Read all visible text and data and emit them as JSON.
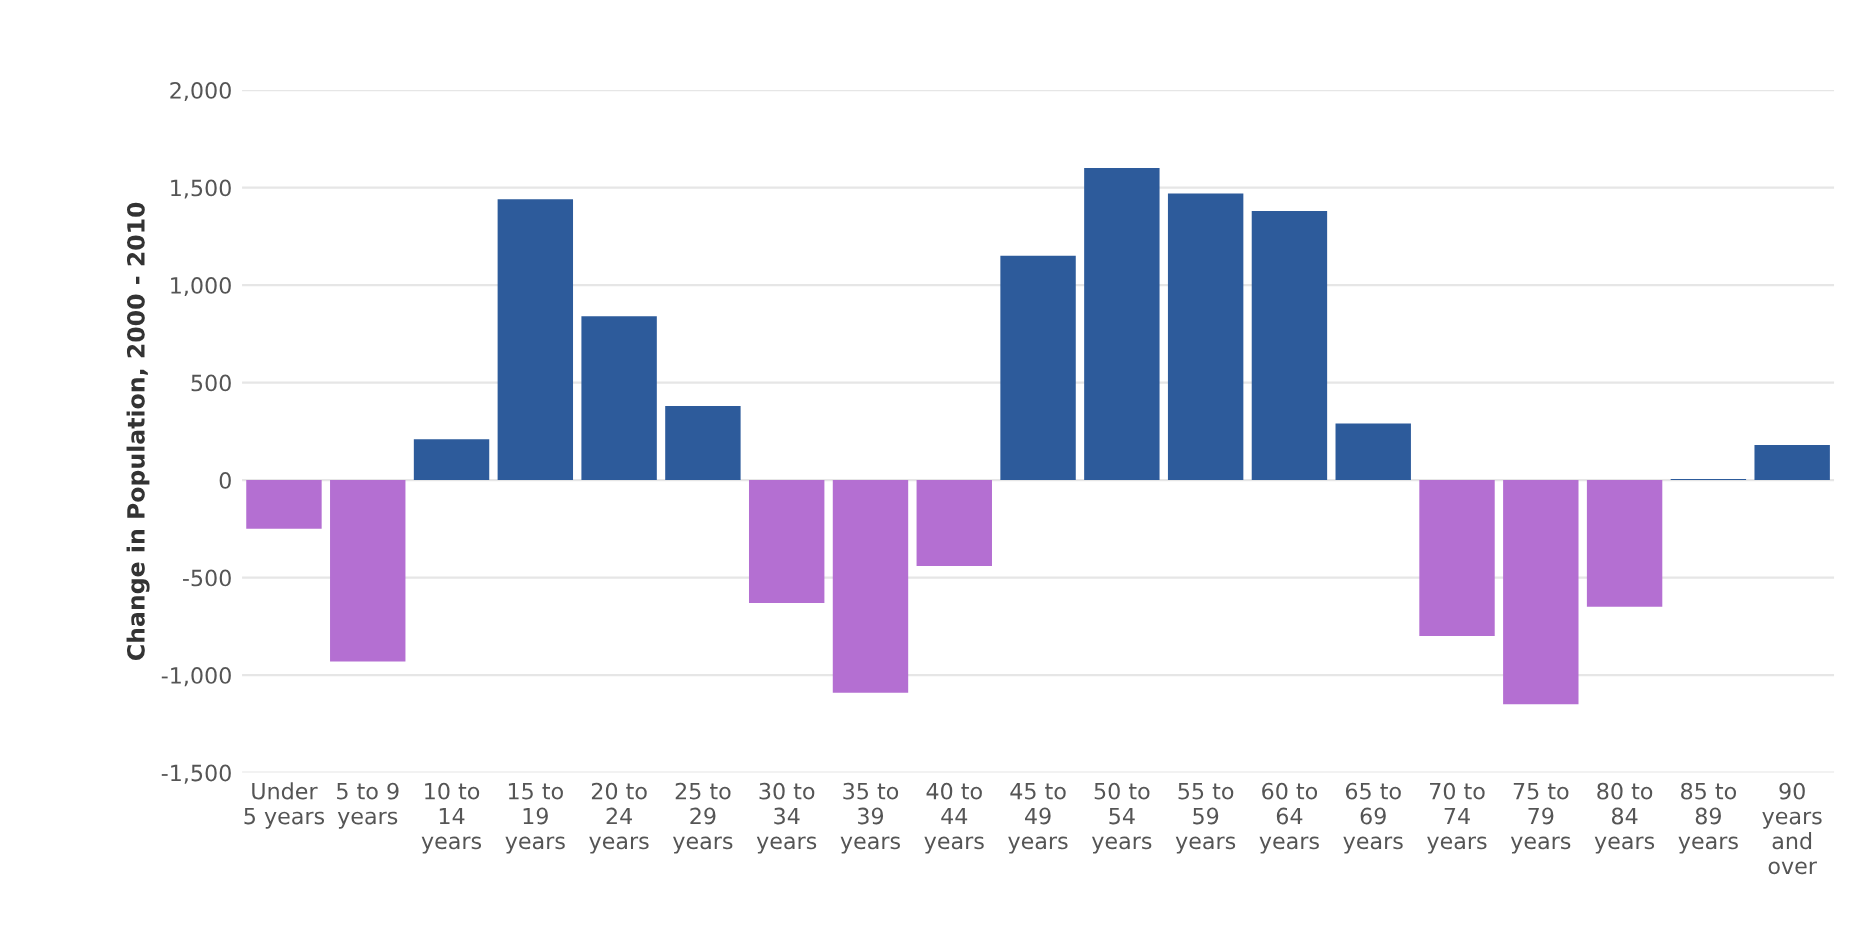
{
  "chart_data": {
    "type": "bar",
    "ylabel": "Change in Population, 2000 - 2010",
    "categories": [
      "Under\n5 years",
      "5 to 9\nyears",
      "10 to\n14\nyears",
      "15 to\n19\nyears",
      "20 to\n24\nyears",
      "25 to\n29\nyears",
      "30 to\n34\nyears",
      "35 to\n39\nyears",
      "40 to\n44\nyears",
      "45 to\n49\nyears",
      "50 to\n54\nyears",
      "55 to\n59\nyears",
      "60 to\n64\nyears",
      "65 to\n69\nyears",
      "70 to\n74\nyears",
      "75 to\n79\nyears",
      "80 to\n84\nyears",
      "85 to\n89\nyears",
      "90\nyears\nand\nover"
    ],
    "values": [
      -250,
      -930,
      210,
      1440,
      840,
      380,
      -630,
      -1090,
      -440,
      1150,
      1600,
      1470,
      1380,
      290,
      -800,
      -1150,
      -650,
      5,
      180
    ],
    "colors": [
      "#b46fd2",
      "#b46fd2",
      "#2d5b9b",
      "#2d5b9b",
      "#2d5b9b",
      "#2d5b9b",
      "#b46fd2",
      "#b46fd2",
      "#b46fd2",
      "#2d5b9b",
      "#2d5b9b",
      "#2d5b9b",
      "#2d5b9b",
      "#2d5b9b",
      "#b46fd2",
      "#b46fd2",
      "#b46fd2",
      "#2d5b9b",
      "#2d5b9b"
    ],
    "ylim": [
      -1500,
      2000
    ],
    "yticks": [
      {
        "value": -1500,
        "label": "-1,500"
      },
      {
        "value": -1000,
        "label": "-1,000"
      },
      {
        "value": -500,
        "label": "-500"
      },
      0,
      {
        "value": 500,
        "label": "500"
      },
      {
        "value": 1000,
        "label": "1,000"
      },
      {
        "value": 1500,
        "label": "1,500"
      },
      {
        "value": 2000,
        "label": "2,000"
      }
    ],
    "grid": "y"
  }
}
